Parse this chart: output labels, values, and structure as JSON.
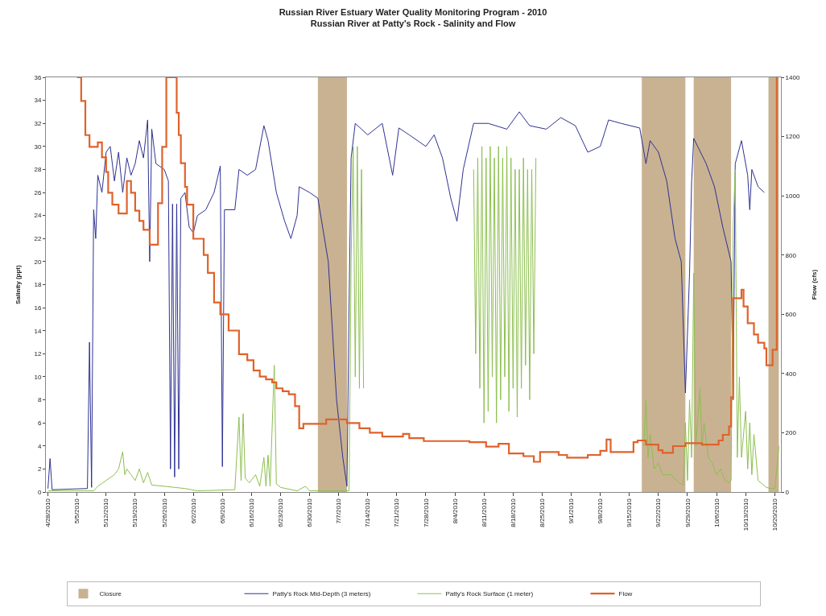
{
  "chart_data": {
    "type": "line",
    "title": "Russian River Estuary Water Quality Monitoring Program - 2010",
    "subtitle": "Russian River at Patty's Rock - Salinity and Flow",
    "ylabel": "Salinity (ppt)",
    "y2label": "Flow (cfs)",
    "xlim": [
      "2010-04-27T12:00",
      "2010-10-21T12:00"
    ],
    "xticks": [
      {
        "value": "2010-04-28",
        "label": "4/28/2010"
      },
      {
        "value": "2010-05-05",
        "label": "5/5/2010"
      },
      {
        "value": "2010-05-12",
        "label": "5/12/2010"
      },
      {
        "value": "2010-05-19",
        "label": "5/19/2010"
      },
      {
        "value": "2010-05-26",
        "label": "5/26/2010"
      },
      {
        "value": "2010-06-02",
        "label": "6/2/2010"
      },
      {
        "value": "2010-06-09",
        "label": "6/9/2010"
      },
      {
        "value": "2010-06-16",
        "label": "6/16/2010"
      },
      {
        "value": "2010-06-23",
        "label": "6/23/2010"
      },
      {
        "value": "2010-06-30",
        "label": "6/30/2010"
      },
      {
        "value": "2010-07-07",
        "label": "7/7/2010"
      },
      {
        "value": "2010-07-14",
        "label": "7/14/2010"
      },
      {
        "value": "2010-07-21",
        "label": "7/21/2010"
      },
      {
        "value": "2010-07-28",
        "label": "7/28/2010"
      },
      {
        "value": "2010-08-04",
        "label": "8/4/2010"
      },
      {
        "value": "2010-08-11",
        "label": "8/11/2010"
      },
      {
        "value": "2010-08-18",
        "label": "8/18/2010"
      },
      {
        "value": "2010-08-25",
        "label": "8/25/2010"
      },
      {
        "value": "2010-09-01",
        "label": "9/1/2010"
      },
      {
        "value": "2010-09-08",
        "label": "9/8/2010"
      },
      {
        "value": "2010-09-15",
        "label": "9/15/2010"
      },
      {
        "value": "2010-09-22",
        "label": "9/22/2010"
      },
      {
        "value": "2010-09-29",
        "label": "9/29/2010"
      },
      {
        "value": "2010-10-06",
        "label": "10/6/2010"
      },
      {
        "value": "2010-10-13",
        "label": "10/13/2010"
      },
      {
        "value": "2010-10-20",
        "label": "10/20/2010"
      }
    ],
    "ylim": [
      0,
      36
    ],
    "yticks": [
      0,
      2,
      4,
      6,
      8,
      10,
      12,
      14,
      16,
      18,
      20,
      22,
      24,
      26,
      28,
      30,
      32,
      34,
      36
    ],
    "y2lim": [
      0,
      1400
    ],
    "y2ticks": [
      0,
      200,
      400,
      600,
      800,
      1000,
      1200,
      1400
    ],
    "bands": [
      {
        "axis": "x",
        "from": "2010-07-02",
        "to": "2010-07-09",
        "label": "Closure",
        "color": "#c9b292"
      },
      {
        "axis": "x",
        "from": "2010-09-18",
        "to": "2010-09-28T12:00",
        "color": "#c9b292"
      },
      {
        "axis": "x",
        "from": "2010-09-30T12:00",
        "to": "2010-10-09T12:00",
        "color": "#c9b292"
      },
      {
        "axis": "x",
        "from": "2010-10-18T12:00",
        "to": "2010-10-21",
        "color": "#c9b292"
      }
    ],
    "legend": "bottom",
    "series": [
      {
        "name": "Patty's Rock Mid-Depth (3 meters)",
        "color": "#2e3192",
        "x": [
          "2010-04-28",
          "2010-04-28T12:00",
          "2010-04-29",
          "2010-05-07T12:00",
          "2010-05-08",
          "2010-05-08T12:00",
          "2010-05-09",
          "2010-05-09T12:00",
          "2010-05-10",
          "2010-05-11",
          "2010-05-12",
          "2010-05-13",
          "2010-05-14",
          "2010-05-15",
          "2010-05-16",
          "2010-05-17",
          "2010-05-18",
          "2010-05-19",
          "2010-05-20",
          "2010-05-21",
          "2010-05-22",
          "2010-05-22T12:00",
          "2010-05-23",
          "2010-05-24",
          "2010-05-26",
          "2010-05-27",
          "2010-05-27T12:00",
          "2010-05-28",
          "2010-05-28T12:00",
          "2010-05-29",
          "2010-05-29T12:00",
          "2010-05-30",
          "2010-05-31",
          "2010-06-01",
          "2010-06-02",
          "2010-06-03",
          "2010-06-05",
          "2010-06-07",
          "2010-06-08T12:00",
          "2010-06-09",
          "2010-06-09T12:00",
          "2010-06-12",
          "2010-06-13",
          "2010-06-15",
          "2010-06-17",
          "2010-06-19",
          "2010-06-20",
          "2010-06-22",
          "2010-06-24",
          "2010-06-25T12:00",
          "2010-06-27",
          "2010-06-27T12:00",
          "2010-06-30",
          "2010-07-02",
          "2010-07-04T12:00",
          "2010-07-06T12:00",
          "2010-07-08",
          "2010-07-09",
          "2010-07-09T12:00",
          "2010-07-10",
          "2010-07-11",
          "2010-07-14",
          "2010-07-17T12:00",
          "2010-07-20",
          "2010-07-21T12:00",
          "2010-07-24",
          "2010-07-28",
          "2010-07-30",
          "2010-08-01",
          "2010-08-03",
          "2010-08-04T12:00",
          "2010-08-06",
          "2010-08-08T12:00",
          "2010-08-12",
          "2010-08-16T12:00",
          "2010-08-19T12:00",
          "2010-08-22",
          "2010-08-26",
          "2010-08-29T12:00",
          "2010-09-02",
          "2010-09-05",
          "2010-09-08",
          "2010-09-10",
          "2010-09-13",
          "2010-09-17T12:00",
          "2010-09-19",
          "2010-09-20",
          "2010-09-22",
          "2010-09-24",
          "2010-09-26",
          "2010-09-27T12:00",
          "2010-09-28T12:00",
          "2010-09-29T12:00",
          "2010-09-30",
          "2010-09-30T12:00",
          "2010-10-03T12:00",
          "2010-10-05T12:00",
          "2010-10-07T12:00",
          "2010-10-09T12:00",
          "2010-10-10",
          "2010-10-10T12:00",
          "2010-10-12",
          "2010-10-13T12:00",
          "2010-10-14",
          "2010-10-14T12:00",
          "2010-10-16",
          "2010-10-17T12:00"
        ],
        "values": [
          0.3,
          2.9,
          0.2,
          0.3,
          13,
          0.4,
          24.5,
          22,
          27.5,
          26,
          29.5,
          30,
          27,
          29.5,
          26,
          29,
          27.5,
          28.5,
          30.5,
          29,
          32.3,
          20,
          31.5,
          28.5,
          28,
          27,
          2,
          25,
          1.3,
          25,
          2,
          25.5,
          26,
          23,
          22.5,
          24,
          24.5,
          26,
          28.3,
          2.2,
          24.5,
          24.5,
          28,
          27.5,
          28,
          31.8,
          30.5,
          26,
          23.5,
          22,
          24,
          26.5,
          26,
          25.5,
          20,
          8,
          3,
          0.5,
          16,
          29,
          32,
          31,
          32,
          27.5,
          31.6,
          31,
          30,
          31,
          29,
          25.5,
          23.5,
          28,
          32,
          32,
          31.5,
          33,
          31.8,
          31.5,
          32.5,
          31.8,
          29.5,
          30,
          32.3,
          32,
          31.6,
          28.5,
          30.5,
          29.5,
          27,
          22,
          20,
          8.6,
          19,
          27,
          30.7,
          28.5,
          26.5,
          23,
          20,
          8,
          28.5,
          30.5,
          27.5,
          24.5,
          28,
          26.5,
          26
        ]
      },
      {
        "name": "Patty's Rock Surface (1 meter)",
        "color": "#8cbf4f",
        "x": [
          "2010-04-28",
          "2010-05-09",
          "2010-05-10",
          "2010-05-12",
          "2010-05-14",
          "2010-05-15",
          "2010-05-16",
          "2010-05-16T12:00",
          "2010-05-17",
          "2010-05-18",
          "2010-05-19",
          "2010-05-20",
          "2010-05-21",
          "2010-05-22",
          "2010-05-23",
          "2010-05-26",
          "2010-05-31",
          "2010-06-03",
          "2010-06-12",
          "2010-06-13",
          "2010-06-13T12:00",
          "2010-06-14",
          "2010-06-14T12:00",
          "2010-06-15T12:00",
          "2010-06-17",
          "2010-06-18",
          "2010-06-19",
          "2010-06-19T12:00",
          "2010-06-20",
          "2010-06-20T12:00",
          "2010-06-21T12:00",
          "2010-06-22",
          "2010-06-23",
          "2010-06-27",
          "2010-06-29",
          "2010-06-30",
          "2010-07-09T12:00",
          "2010-07-10",
          "2010-07-10T12:00",
          "2010-07-11",
          "2010-07-11T12:00",
          "2010-07-12",
          "2010-07-12T12:00",
          "2010-07-13",
          "2010-07-25",
          "2010-08-08T12:00",
          "2010-08-09",
          "2010-08-09T12:00",
          "2010-08-10",
          "2010-08-10T12:00",
          "2010-08-11",
          "2010-08-11T12:00",
          "2010-08-12",
          "2010-08-12T12:00",
          "2010-08-13",
          "2010-08-13T12:00",
          "2010-08-14",
          "2010-08-14T12:00",
          "2010-08-15",
          "2010-08-15T12:00",
          "2010-08-16",
          "2010-08-16T12:00",
          "2010-08-17",
          "2010-08-17T12:00",
          "2010-08-18",
          "2010-08-18T12:00",
          "2010-08-19",
          "2010-08-19T12:00",
          "2010-08-20",
          "2010-08-20T12:00",
          "2010-08-21",
          "2010-08-21T12:00",
          "2010-08-22",
          "2010-08-22T12:00",
          "2010-08-23",
          "2010-08-23T12:00",
          "2010-09-05",
          "2010-09-18T12:00",
          "2010-09-19",
          "2010-09-19T12:00",
          "2010-09-20",
          "2010-09-21",
          "2010-09-22",
          "2010-09-23",
          "2010-09-25",
          "2010-09-27",
          "2010-09-28",
          "2010-09-28T12:00",
          "2010-09-29",
          "2010-09-29T12:00",
          "2010-09-30",
          "2010-09-30T12:00",
          "2010-10-01",
          "2010-10-02",
          "2010-10-02T12:00",
          "2010-10-03",
          "2010-10-04",
          "2010-10-05",
          "2010-10-06",
          "2010-10-07",
          "2010-10-08",
          "2010-10-09",
          "2010-10-09T12:00",
          "2010-10-10",
          "2010-10-10T12:00",
          "2010-10-11",
          "2010-10-11T12:00",
          "2010-10-12",
          "2010-10-13",
          "2010-10-13T12:00",
          "2010-10-14",
          "2010-10-14T12:00",
          "2010-10-15",
          "2010-10-16",
          "2010-10-17",
          "2010-10-18",
          "2010-10-19",
          "2010-10-20",
          "2010-10-20T12:00",
          "2010-10-21"
        ],
        "values": [
          0.1,
          0.1,
          0.5,
          1,
          1.5,
          2,
          3.5,
          1.5,
          2,
          1.5,
          1,
          2,
          0.8,
          1.7,
          0.6,
          0.5,
          0.3,
          0.1,
          0.2,
          6.5,
          1,
          6.8,
          1.2,
          0.8,
          1.5,
          0.5,
          3,
          0.5,
          3.2,
          0.5,
          11,
          0.7,
          0.4,
          0.1,
          0.5,
          0.1,
          0.1,
          20,
          30,
          10,
          30,
          9,
          28,
          9,
          null,
          28,
          12,
          29,
          9,
          30,
          6,
          29,
          7,
          30,
          10,
          29,
          6,
          30,
          8,
          29,
          10,
          30,
          7,
          29,
          9,
          28,
          6.5,
          28,
          9,
          29,
          11,
          28,
          8,
          28,
          12,
          29,
          null,
          4,
          8,
          3,
          5,
          2,
          2.5,
          1.5,
          1.5,
          0.8,
          0.6,
          6,
          1,
          8,
          3,
          19,
          4,
          9,
          4,
          6,
          3,
          2.5,
          1.5,
          2,
          1,
          0.8,
          1,
          23,
          28,
          3,
          10,
          3,
          7,
          2,
          6,
          1.5,
          5,
          1,
          0.7,
          0.4,
          0.3,
          0.3,
          2,
          4
        ]
      },
      {
        "name": "Flow",
        "type": "step",
        "axis": "y2",
        "color": "#e0622a",
        "x": [
          "2010-05-05",
          "2010-05-06",
          "2010-05-07",
          "2010-05-08",
          "2010-05-10",
          "2010-05-11",
          "2010-05-12",
          "2010-05-12T12:00",
          "2010-05-13T12:00",
          "2010-05-15",
          "2010-05-17",
          "2010-05-18",
          "2010-05-19",
          "2010-05-20",
          "2010-05-21",
          "2010-05-22T12:00",
          "2010-05-24T12:00",
          "2010-05-25T12:00",
          "2010-05-26T12:00",
          "2010-05-29",
          "2010-05-29T12:00",
          "2010-05-30",
          "2010-05-31",
          "2010-05-31T12:00",
          "2010-06-02",
          "2010-06-04T12:00",
          "2010-06-05T12:00",
          "2010-06-07",
          "2010-06-08T12:00",
          "2010-06-10T12:00",
          "2010-06-13",
          "2010-06-15",
          "2010-06-16T12:00",
          "2010-06-18",
          "2010-06-19T12:00",
          "2010-06-21",
          "2010-06-22",
          "2010-06-23T12:00",
          "2010-06-25",
          "2010-06-26T12:00",
          "2010-06-27T12:00",
          "2010-06-28T12:00",
          "2010-07-04",
          "2010-07-09",
          "2010-07-12",
          "2010-07-14T12:00",
          "2010-07-17T12:00",
          "2010-07-22T12:00",
          "2010-07-24",
          "2010-07-27T12:00",
          "2010-08-01T12:00",
          "2010-08-07T12:00",
          "2010-08-11T12:00",
          "2010-08-14T12:00",
          "2010-08-17",
          "2010-08-20T12:00",
          "2010-08-23",
          "2010-08-24T12:00",
          "2010-08-29",
          "2010-08-31",
          "2010-09-05",
          "2010-09-08",
          "2010-09-09T12:00",
          "2010-09-10T12:00",
          "2010-09-16",
          "2010-09-17",
          "2010-09-19",
          "2010-09-22",
          "2010-09-23",
          "2010-09-25T12:00",
          "2010-09-28T12:00",
          "2010-10-02T12:00",
          "2010-10-06T12:00",
          "2010-10-07T12:00",
          "2010-10-09",
          "2010-10-09T12:00",
          "2010-10-10",
          "2010-10-12",
          "2010-10-12T12:00",
          "2010-10-13T12:00",
          "2010-10-15",
          "2010-10-16",
          "2010-10-17T12:00",
          "2010-10-18",
          "2010-10-19T12:00",
          "2010-10-20T12:00"
        ],
        "values": [
          1400,
          1320,
          1205,
          1165,
          1180,
          1130,
          1080,
          1010,
          970,
          940,
          1050,
          1010,
          950,
          915,
          885,
          835,
          975,
          1165,
          1400,
          1280,
          1205,
          1110,
          1030,
          970,
          855,
          800,
          740,
          640,
          600,
          545,
          465,
          445,
          410,
          390,
          380,
          370,
          350,
          340,
          330,
          290,
          215,
          230,
          245,
          233,
          215,
          200,
          187,
          196,
          182,
          172,
          172,
          168,
          153,
          163,
          130,
          121,
          102,
          135,
          125,
          116,
          125,
          139,
          177,
          135,
          168,
          174,
          160,
          141,
          132,
          155,
          165,
          160,
          174,
          193,
          221,
          320,
          654,
          683,
          626,
          570,
          532,
          504,
          485,
          428,
          480,
          1400
        ]
      }
    ]
  }
}
